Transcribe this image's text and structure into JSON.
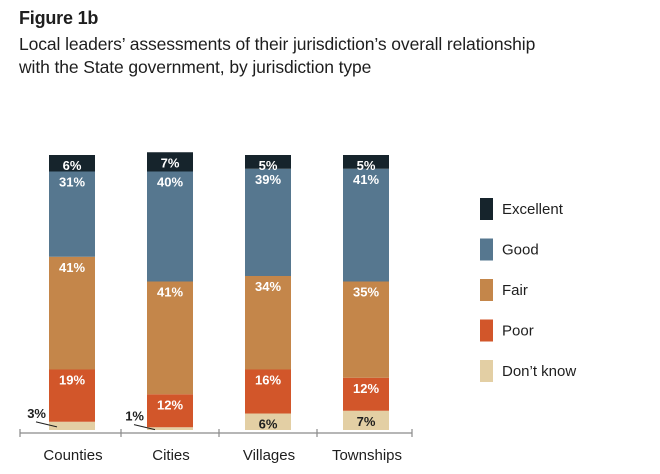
{
  "figure_label": "Figure 1b",
  "chart_data": {
    "type": "bar",
    "stacked": true,
    "title": "Local leaders’ assessments of their jurisdiction’s overall relationship\nwith the State government, by jurisdiction type",
    "categories": [
      "Counties",
      "Cities",
      "Villages",
      "Townships"
    ],
    "series": [
      {
        "name": "Don’t know",
        "color": "#e3cfa4",
        "values": [
          3,
          1,
          6,
          7
        ],
        "labels": [
          "3%",
          "1%",
          "6%",
          "7%"
        ]
      },
      {
        "name": "Poor",
        "color": "#d2562a",
        "values": [
          19,
          12,
          16,
          12
        ],
        "labels": [
          "19%",
          "12%",
          "16%",
          "12%"
        ]
      },
      {
        "name": "Fair",
        "color": "#c4864a",
        "values": [
          41,
          41,
          34,
          35
        ],
        "labels": [
          "41%",
          "41%",
          "34%",
          "35%"
        ]
      },
      {
        "name": "Good",
        "color": "#56778f",
        "values": [
          31,
          40,
          39,
          41
        ],
        "labels": [
          "31%",
          "40%",
          "39%",
          "41%"
        ]
      },
      {
        "name": "Excellent",
        "color": "#16242c",
        "values": [
          6,
          7,
          5,
          5
        ],
        "labels": [
          "6%",
          "7%",
          "5%",
          "5%"
        ]
      }
    ],
    "legend_order": [
      "Excellent",
      "Good",
      "Fair",
      "Poor",
      "Don’t know"
    ],
    "legend_position": "right",
    "ylim": [
      0,
      100
    ],
    "grid": false
  }
}
